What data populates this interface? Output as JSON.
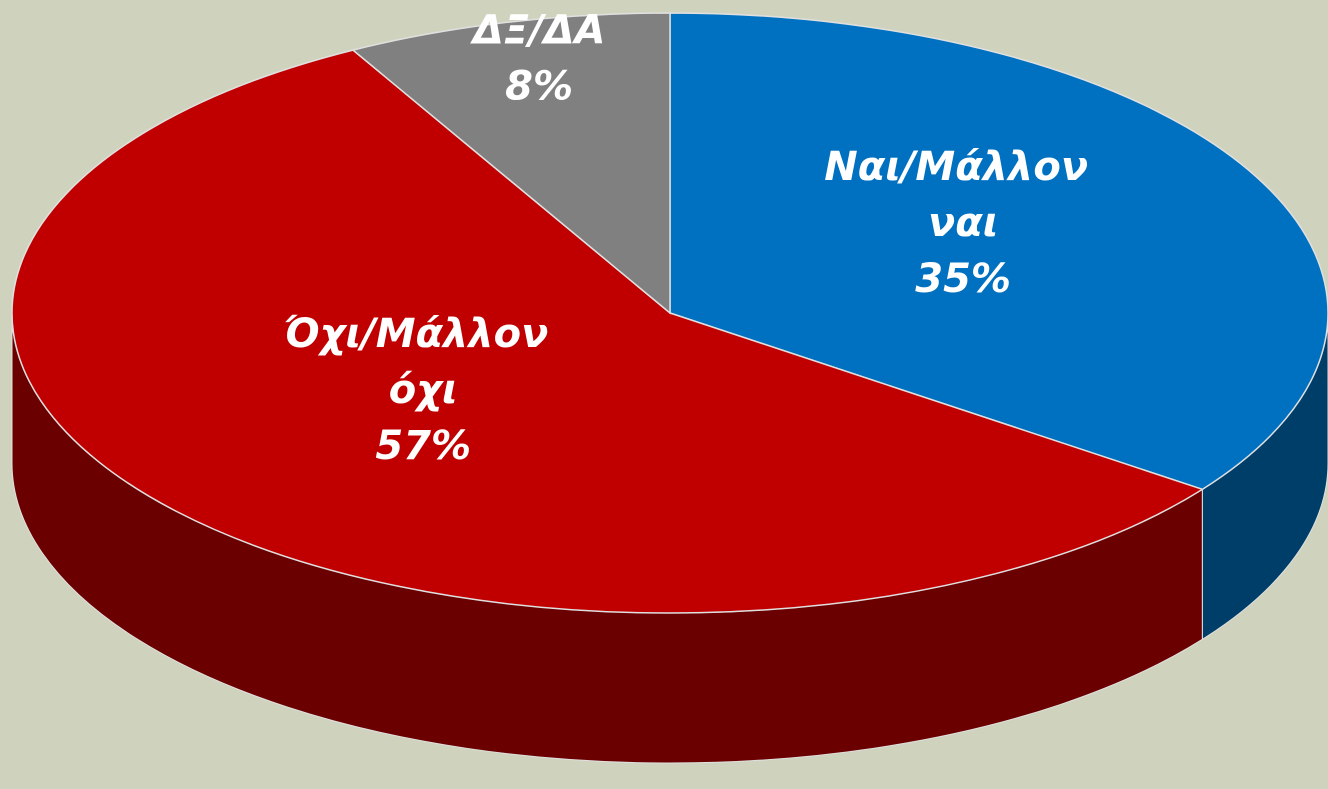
{
  "chart_data": {
    "type": "pie",
    "categories": [
      "Ναι/Μάλλον ναι",
      "Όχι/Μάλλον όχι",
      "ΔΞ/ΔΑ"
    ],
    "values": [
      35,
      57,
      8
    ],
    "value_labels": [
      "35%",
      "57%",
      "8%"
    ],
    "colors": [
      "#0070c0",
      "#c00000",
      "#808080"
    ]
  }
}
